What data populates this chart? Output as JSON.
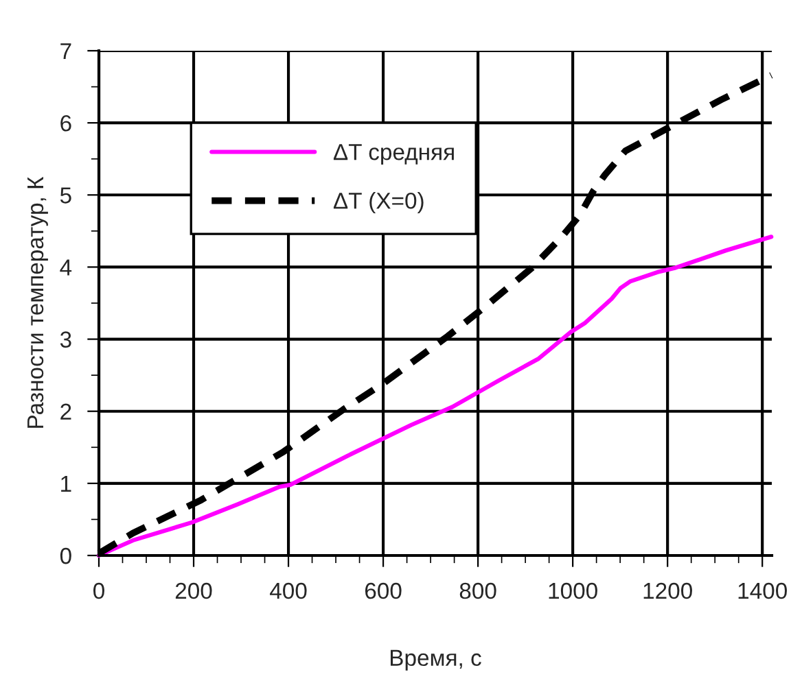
{
  "chart_data": {
    "type": "line",
    "xlabel": "Время, с",
    "ylabel": "Разности температур, К",
    "xlim": [
      0,
      1420
    ],
    "ylim": [
      0,
      7
    ],
    "xticks": [
      0,
      200,
      400,
      600,
      800,
      1000,
      1200,
      1400
    ],
    "yticks": [
      0,
      1,
      2,
      3,
      4,
      5,
      6,
      7
    ],
    "grid": true,
    "legend": "top left",
    "series": [
      {
        "name": "ΔT средняя",
        "color": "#ff00ff",
        "line_style": "solid",
        "x": [
          0,
          72,
          197,
          293,
          380,
          404,
          524,
          659,
          746,
          842,
          928,
          996,
          1025,
          1082,
          1101,
          1121,
          1179,
          1217,
          1323,
          1419
        ],
        "values": [
          0,
          0.21,
          0.46,
          0.71,
          0.95,
          0.98,
          1.38,
          1.81,
          2.06,
          2.42,
          2.73,
          3.1,
          3.22,
          3.56,
          3.71,
          3.8,
          3.93,
          3.99,
          4.23,
          4.42
        ]
      },
      {
        "name": "ΔT (X=0)",
        "color": "#000000",
        "line_style": "dashed",
        "x": [
          0,
          72,
          216,
          390,
          515,
          601,
          736,
          813,
          914,
          977,
          1015,
          1044,
          1068,
          1111,
          1207,
          1313,
          1419
        ],
        "values": [
          0.03,
          0.31,
          0.77,
          1.44,
          2.02,
          2.39,
          3.04,
          3.44,
          3.99,
          4.42,
          4.72,
          5.06,
          5.28,
          5.61,
          5.95,
          6.32,
          6.66
        ]
      }
    ]
  }
}
